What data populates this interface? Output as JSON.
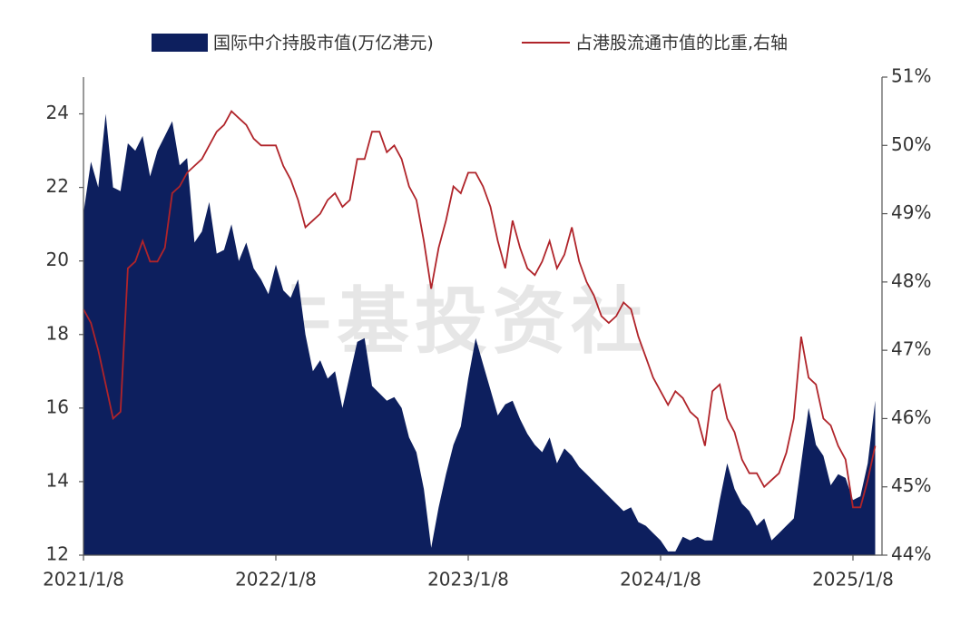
{
  "chart_data": {
    "type": "area_line",
    "watermark": "牛基投资社",
    "categories": [
      "2021/1/8",
      null,
      null,
      null,
      null,
      null,
      null,
      null,
      null,
      null,
      null,
      null,
      null,
      null,
      null,
      null,
      null,
      null,
      null,
      null,
      null,
      null,
      null,
      null,
      null,
      null,
      "2022/1/8",
      null,
      null,
      null,
      null,
      null,
      null,
      null,
      null,
      null,
      null,
      null,
      null,
      null,
      null,
      null,
      null,
      null,
      null,
      null,
      null,
      null,
      null,
      null,
      null,
      null,
      "2023/1/8",
      null,
      null,
      null,
      null,
      null,
      null,
      null,
      null,
      null,
      null,
      null,
      null,
      null,
      null,
      null,
      null,
      null,
      null,
      null,
      null,
      null,
      null,
      null,
      null,
      null,
      "2024/1/8",
      null,
      null,
      null,
      null,
      null,
      null,
      null,
      null,
      null,
      null,
      null,
      null,
      null,
      null,
      null,
      null,
      null,
      null,
      null,
      null,
      null,
      null,
      null,
      null,
      null,
      "2025/1/8",
      null,
      null,
      null
    ],
    "series": [
      {
        "name": "国际中介持股市值(万亿港元)",
        "kind": "area",
        "color": "#0d1f5e",
        "values": [
          21.3,
          22.7,
          22.0,
          24.0,
          22.0,
          21.9,
          23.2,
          23.0,
          23.4,
          22.3,
          23.0,
          23.4,
          23.8,
          22.6,
          22.8,
          20.5,
          20.8,
          21.6,
          20.2,
          20.3,
          21.0,
          20.0,
          20.5,
          19.8,
          19.5,
          19.1,
          19.9,
          19.2,
          19.0,
          19.5,
          18.0,
          17.0,
          17.3,
          16.8,
          17.0,
          16.0,
          16.9,
          17.8,
          17.9,
          16.6,
          16.4,
          16.2,
          16.3,
          16.0,
          15.2,
          14.8,
          13.8,
          12.2,
          13.3,
          14.2,
          15.0,
          15.5,
          16.8,
          17.9,
          17.2,
          16.5,
          15.8,
          16.1,
          16.2,
          15.7,
          15.3,
          15.0,
          14.8,
          15.2,
          14.5,
          14.9,
          14.7,
          14.4,
          14.2,
          14.0,
          13.8,
          13.6,
          13.4,
          13.2,
          13.3,
          12.9,
          12.8,
          12.6,
          12.4,
          12.1,
          12.1,
          12.5,
          12.4,
          12.5,
          12.4,
          12.4,
          13.5,
          14.5,
          13.8,
          13.4,
          13.2,
          12.8,
          13.0,
          12.4,
          12.6,
          12.8,
          13.0,
          14.5,
          16.0,
          15.0,
          14.7,
          13.9,
          14.2,
          14.1,
          13.5,
          13.6,
          14.5,
          16.2
        ]
      },
      {
        "name": "占港股流通市值的比重,右轴",
        "kind": "line",
        "axis": "y2",
        "color": "#b0242a",
        "values": [
          47.6,
          47.4,
          47.0,
          46.5,
          46.0,
          46.1,
          48.2,
          48.3,
          48.6,
          48.3,
          48.3,
          48.5,
          49.3,
          49.4,
          49.6,
          49.7,
          49.8,
          50.0,
          50.2,
          50.3,
          50.5,
          50.4,
          50.3,
          50.1,
          50.0,
          50.0,
          50.0,
          49.7,
          49.5,
          49.2,
          48.8,
          48.9,
          49.0,
          49.2,
          49.3,
          49.1,
          49.2,
          49.8,
          49.8,
          50.2,
          50.2,
          49.9,
          50.0,
          49.8,
          49.4,
          49.2,
          48.6,
          47.9,
          48.5,
          48.9,
          49.4,
          49.3,
          49.6,
          49.6,
          49.4,
          49.1,
          48.6,
          48.2,
          48.9,
          48.5,
          48.2,
          48.1,
          48.3,
          48.6,
          48.2,
          48.4,
          48.8,
          48.3,
          48.0,
          47.8,
          47.5,
          47.4,
          47.5,
          47.7,
          47.6,
          47.2,
          46.9,
          46.6,
          46.4,
          46.2,
          46.4,
          46.3,
          46.1,
          46.0,
          45.6,
          46.4,
          46.5,
          46.0,
          45.8,
          45.4,
          45.2,
          45.2,
          45.0,
          45.1,
          45.2,
          45.5,
          46.0,
          47.2,
          46.6,
          46.5,
          46.0,
          45.9,
          45.6,
          45.4,
          44.7,
          44.7,
          45.1,
          45.6
        ]
      }
    ],
    "ylim": [
      12,
      25
    ],
    "yticks": [
      12,
      14,
      16,
      18,
      20,
      22,
      24
    ],
    "y2lim": [
      44,
      51
    ],
    "y2ticks": [
      {
        "value": 44,
        "label": "44%"
      },
      {
        "value": 45,
        "label": "45%"
      },
      {
        "value": 46,
        "label": "46%"
      },
      {
        "value": 47,
        "label": "47%"
      },
      {
        "value": 48,
        "label": "48%"
      },
      {
        "value": 49,
        "label": "49%"
      },
      {
        "value": 50,
        "label": "50%"
      },
      {
        "value": 51,
        "label": "51%"
      }
    ],
    "legend": "top",
    "grid": false
  }
}
